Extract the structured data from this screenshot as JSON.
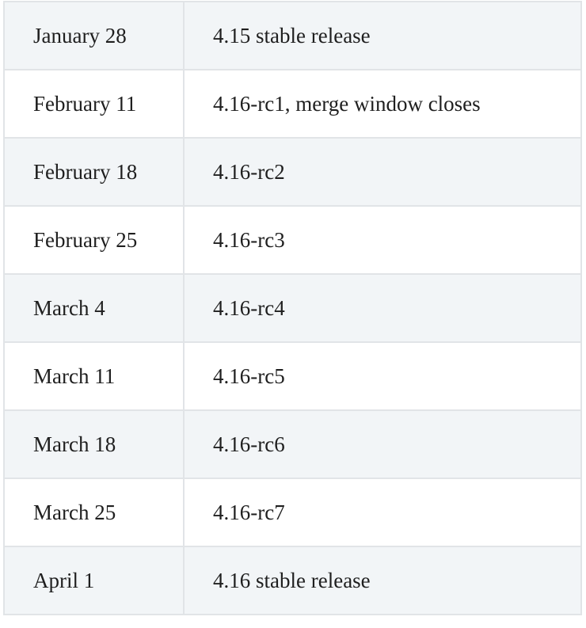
{
  "schedule": {
    "rows": [
      {
        "date": "January 28",
        "event": "4.15 stable release"
      },
      {
        "date": "February 11",
        "event": "4.16-rc1, merge window closes"
      },
      {
        "date": "February 18",
        "event": "4.16-rc2"
      },
      {
        "date": "February 25",
        "event": "4.16-rc3"
      },
      {
        "date": "March 4",
        "event": "4.16-rc4"
      },
      {
        "date": "March 11",
        "event": "4.16-rc5"
      },
      {
        "date": "March 18",
        "event": "4.16-rc6"
      },
      {
        "date": "March 25",
        "event": "4.16-rc7"
      },
      {
        "date": "April 1",
        "event": "4.16 stable release"
      }
    ]
  },
  "colors": {
    "stripe": "#f2f5f7",
    "background": "#ffffff",
    "border": "#e1e4e7",
    "text": "#1f1f1f"
  }
}
